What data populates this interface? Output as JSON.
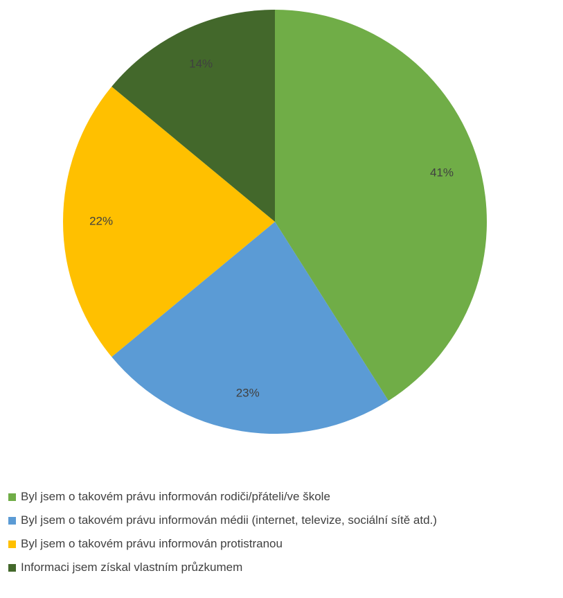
{
  "chart_data": {
    "type": "pie",
    "categories": [
      "Byl jsem o takovém právu informován rodiči/přáteli/ve škole",
      "Byl jsem o takovém právu informován médii (internet, televize, sociální sítě atd.)",
      "Byl jsem o takovém právu informován protistranou",
      "Informaci jsem získal vlastním průzkumem"
    ],
    "values": [
      41,
      23,
      22,
      14
    ],
    "data_labels": [
      "41%",
      "23%",
      "22%",
      "14%"
    ],
    "colors": [
      "#70ad47",
      "#5b9bd5",
      "#ffc000",
      "#43682b"
    ],
    "start_angle": "top, clockwise",
    "legend_position": "bottom-left",
    "title": ""
  }
}
